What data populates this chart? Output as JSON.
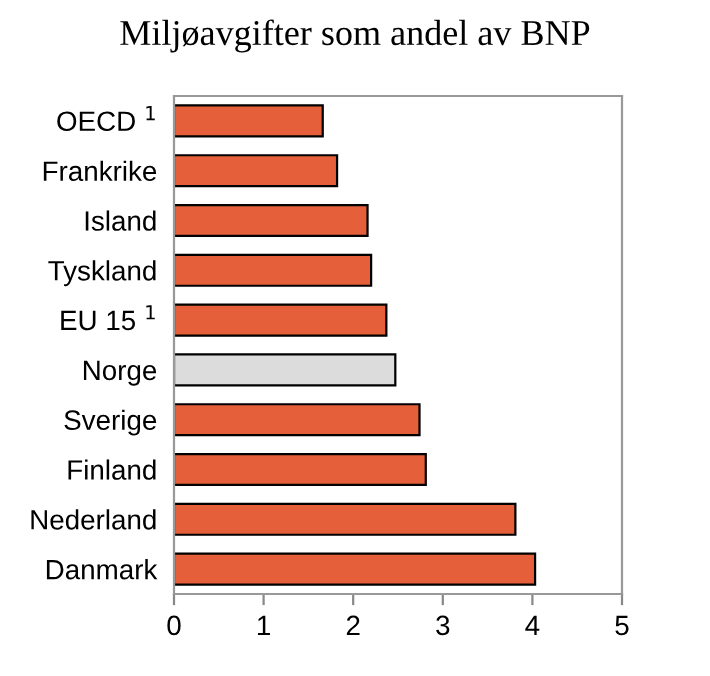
{
  "chart_data": {
    "type": "bar",
    "orientation": "horizontal",
    "title": "Miljøavgifter som andel av BNP",
    "categories": [
      "OECD $^{1}$",
      "Frankrike",
      "Island",
      "Tyskland",
      "EU 15 $^{1}$",
      "Norge",
      "Sverige",
      "Finland",
      "Nederland",
      "Danmark"
    ],
    "values": [
      1.66,
      1.82,
      2.16,
      2.2,
      2.37,
      2.47,
      2.74,
      2.81,
      3.81,
      4.03
    ],
    "colors": [
      "#e5603a",
      "#e5603a",
      "#e5603a",
      "#e5603a",
      "#e5603a",
      "#dcdcdc",
      "#e5603a",
      "#e5603a",
      "#e5603a",
      "#e5603a"
    ],
    "xlim": [
      0,
      5
    ],
    "xticks": [
      0,
      1,
      2,
      3,
      4,
      5
    ],
    "grid": false,
    "legend": false
  }
}
